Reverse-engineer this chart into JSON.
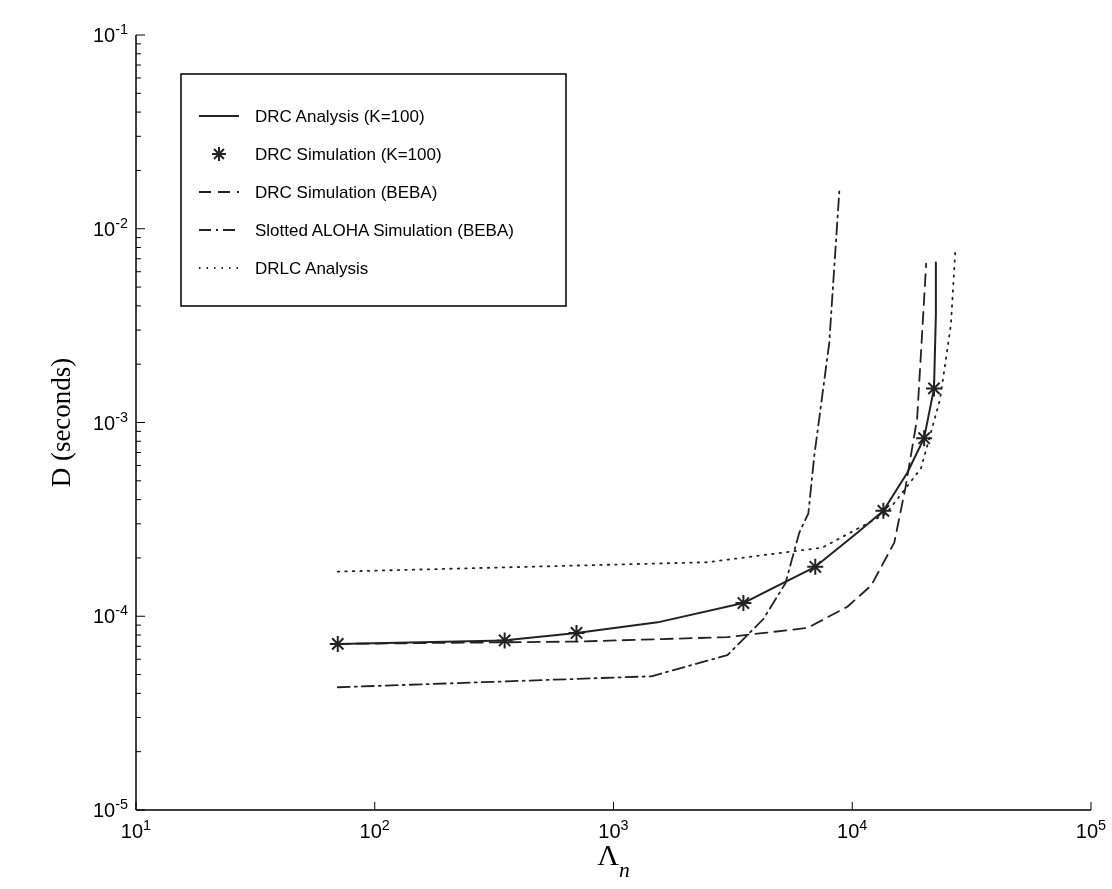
{
  "chart_data": {
    "type": "line",
    "xlabel": "Λ$_{n}$",
    "ylabel": "D (seconds)",
    "log": "xy",
    "legend": "top left",
    "grid": false,
    "xlim": [
      10,
      100000
    ],
    "xticks": [
      {
        "value": 10,
        "label": "10$^{1}$"
      },
      {
        "value": 100,
        "label": "10$^{2}$"
      },
      {
        "value": 1000,
        "label": "10$^{3}$"
      },
      {
        "value": 10000,
        "label": "10$^{4}$"
      },
      {
        "value": 100000,
        "label": "10$^{5}$"
      }
    ],
    "ylim": [
      1e-05,
      0.1
    ],
    "yticks": [
      {
        "value": 1e-05,
        "label": "10$^{-5}$"
      },
      {
        "value": 2e-05,
        "label": null
      },
      {
        "value": 3e-05,
        "label": null
      },
      {
        "value": 4e-05,
        "label": null
      },
      {
        "value": 5e-05,
        "label": null
      },
      {
        "value": 6e-05,
        "label": null
      },
      {
        "value": 7e-05,
        "label": null
      },
      {
        "value": 8e-05,
        "label": null
      },
      {
        "value": 9e-05,
        "label": null
      },
      {
        "value": 0.0001,
        "label": "10$^{-4}$"
      },
      {
        "value": 0.0002,
        "label": null
      },
      {
        "value": 0.0003,
        "label": null
      },
      {
        "value": 0.0004,
        "label": null
      },
      {
        "value": 0.0005,
        "label": null
      },
      {
        "value": 0.0006,
        "label": null
      },
      {
        "value": 0.0007,
        "label": null
      },
      {
        "value": 0.0008,
        "label": null
      },
      {
        "value": 0.0009,
        "label": null
      },
      {
        "value": 0.001,
        "label": "10$^{-3}$"
      },
      {
        "value": 0.002,
        "label": null
      },
      {
        "value": 0.003,
        "label": null
      },
      {
        "value": 0.004,
        "label": null
      },
      {
        "value": 0.005,
        "label": null
      },
      {
        "value": 0.006,
        "label": null
      },
      {
        "value": 0.007,
        "label": null
      },
      {
        "value": 0.008,
        "label": null
      },
      {
        "value": 0.009,
        "label": null
      },
      {
        "value": 0.01,
        "label": "10$^{-2}$"
      },
      {
        "value": 0.02,
        "label": null
      },
      {
        "value": 0.03,
        "label": null
      },
      {
        "value": 0.04,
        "label": null
      },
      {
        "value": 0.05,
        "label": null
      },
      {
        "value": 0.06,
        "label": null
      },
      {
        "value": 0.07,
        "label": null
      },
      {
        "value": 0.08,
        "label": null
      },
      {
        "value": 0.09,
        "label": null
      },
      {
        "value": 0.1,
        "label": "10$^{-1}$"
      }
    ],
    "series": [
      {
        "name": "DRC Analysis (K=100)",
        "type": "line",
        "line_style": "solid",
        "marker": "none",
        "color": "#222222",
        "x": [
          70,
          350,
          700,
          1530,
          3500,
          7000,
          10500,
          13500,
          17000,
          20000,
          22000,
          22400,
          22400
        ],
        "values": [
          7.2e-05,
          7.5e-05,
          8.2e-05,
          9.3e-05,
          0.000117,
          0.00018,
          0.00027,
          0.00035,
          0.00055,
          0.00083,
          0.0015,
          0.0036,
          0.0067
        ]
      },
      {
        "name": "DRC Simulation (K=100)",
        "type": "scatter",
        "marker": "cross",
        "color": "#222222",
        "x": [
          70,
          350,
          700,
          3500,
          7000,
          13500,
          20000,
          22000
        ],
        "values": [
          7.2e-05,
          7.5e-05,
          8.2e-05,
          0.000117,
          0.00018,
          0.00035,
          0.00083,
          0.0015
        ]
      },
      {
        "name": "DRC Simulation (BEBA)",
        "type": "line",
        "line_style": "dashed",
        "marker": "none",
        "color": "#222222",
        "x": [
          70,
          700,
          3000,
          6490,
          9540,
          12000,
          15000,
          16700,
          18700,
          20400
        ],
        "values": [
          7.2e-05,
          7.4e-05,
          7.8e-05,
          8.7e-05,
          0.000112,
          0.000144,
          0.00024,
          0.00046,
          0.00105,
          0.0066
        ]
      },
      {
        "name": "Slotted ALOHA Simulation (BEBA)",
        "type": "line",
        "line_style": "dashdot",
        "marker": "none",
        "color": "#222222",
        "x": [
          70,
          1440,
          3000,
          4250,
          5250,
          6000,
          6550,
          6930,
          8010,
          8830
        ],
        "values": [
          4.3e-05,
          4.9e-05,
          6.3e-05,
          9.7e-05,
          0.000148,
          0.00027,
          0.00034,
          0.00067,
          0.00257,
          0.0157
        ]
      },
      {
        "name": "DRLC Analysis",
        "type": "line",
        "line_style": "dotted",
        "marker": "none",
        "color": "#222222",
        "x": [
          70,
          2470,
          7490,
          13900,
          19400,
          23300,
          25900,
          27000
        ],
        "values": [
          0.00017,
          0.00019,
          0.000226,
          0.00034,
          0.00058,
          0.00131,
          0.0032,
          0.0076
        ]
      }
    ]
  }
}
